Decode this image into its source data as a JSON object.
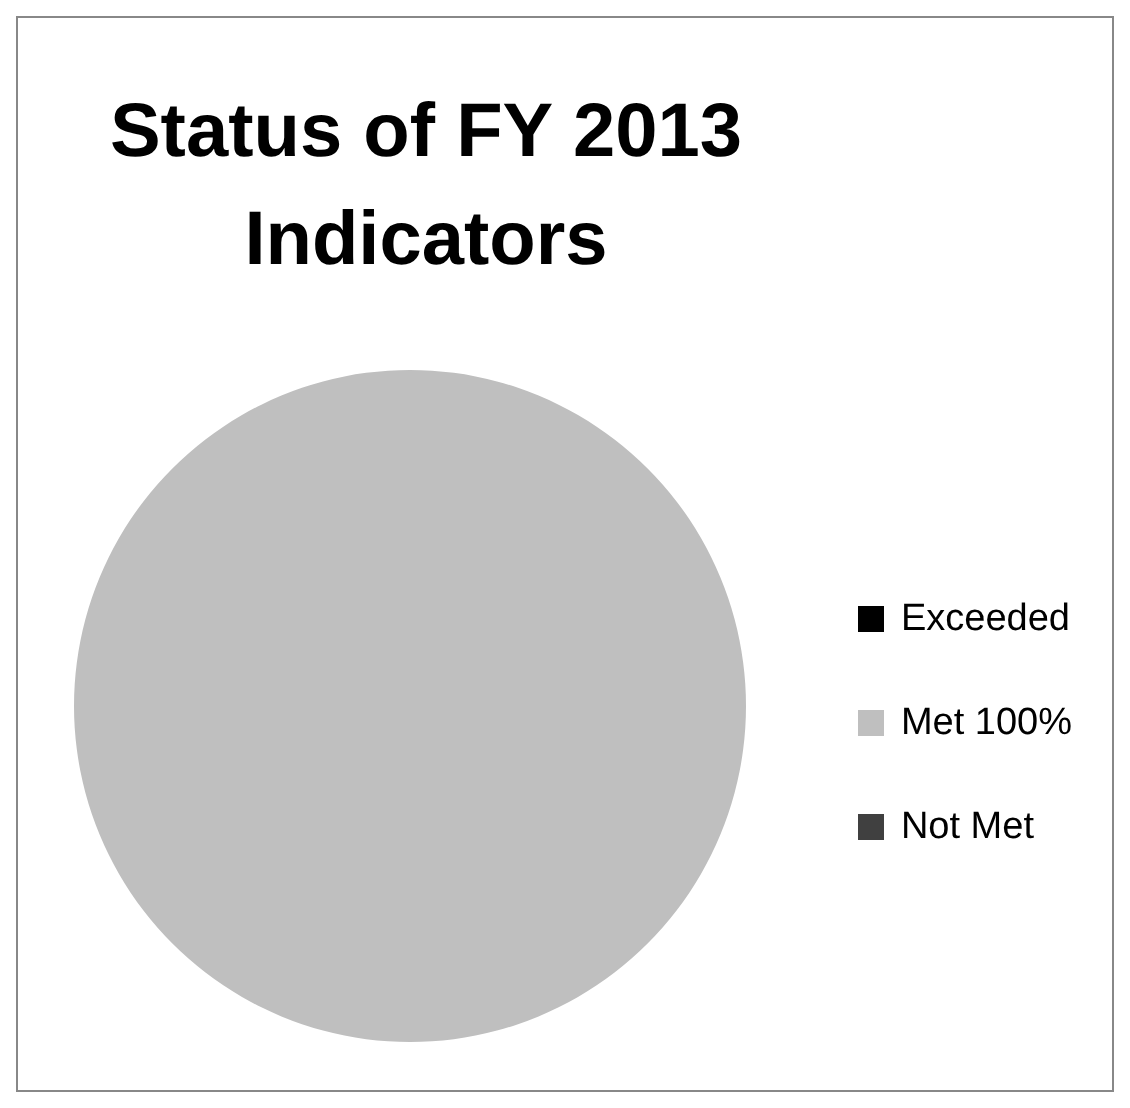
{
  "chart_data": {
    "type": "pie",
    "title": "Status of FY 2013 Indicators",
    "categories": [
      "Exceeded",
      "Met 100%",
      "Not Met"
    ],
    "values": [
      0,
      100,
      0
    ],
    "colors": [
      "#000000",
      "#bfbfbf",
      "#404040"
    ],
    "legend": "right"
  }
}
